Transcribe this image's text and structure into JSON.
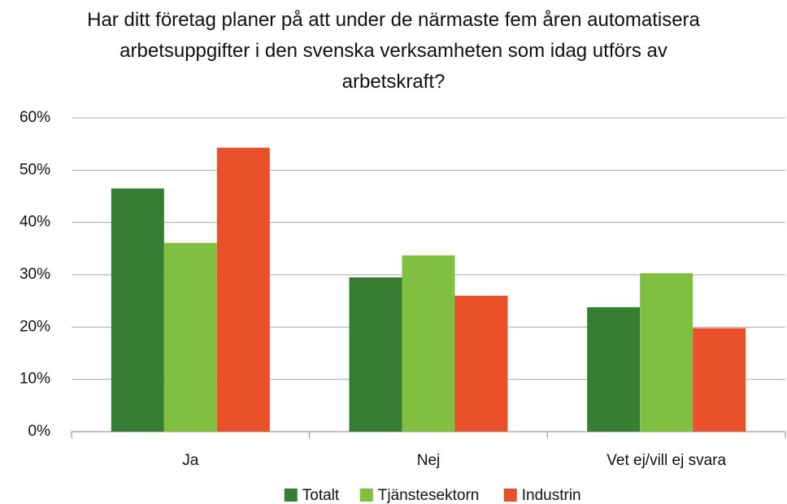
{
  "chart_data": {
    "type": "bar",
    "title": "Har ditt företag planer på att under de närmaste fem åren automatisera arbetsuppgifter i den svenska verksamheten som idag utförs av arbetskraft?",
    "categories": [
      "Ja",
      "Nej",
      "Vet ej/vill ej svara"
    ],
    "series": [
      {
        "name": "Totalt",
        "color": "#357e34",
        "values": [
          46.5,
          29.5,
          23.8
        ]
      },
      {
        "name": "Tjänstesektorn",
        "color": "#80bf40",
        "values": [
          36.1,
          33.7,
          30.3
        ]
      },
      {
        "name": "Industrin",
        "color": "#e9512c",
        "values": [
          54.3,
          26.0,
          19.8
        ]
      }
    ],
    "ylim": [
      0,
      60
    ],
    "yticks": [
      {
        "value": 0,
        "label": "0%"
      },
      {
        "value": 10,
        "label": "10%"
      },
      {
        "value": 20,
        "label": "20%"
      },
      {
        "value": 30,
        "label": "30%"
      },
      {
        "value": 40,
        "label": "40%"
      },
      {
        "value": 50,
        "label": "50%"
      },
      {
        "value": 60,
        "label": "60%"
      }
    ],
    "grid": true,
    "legend": "bottom"
  }
}
